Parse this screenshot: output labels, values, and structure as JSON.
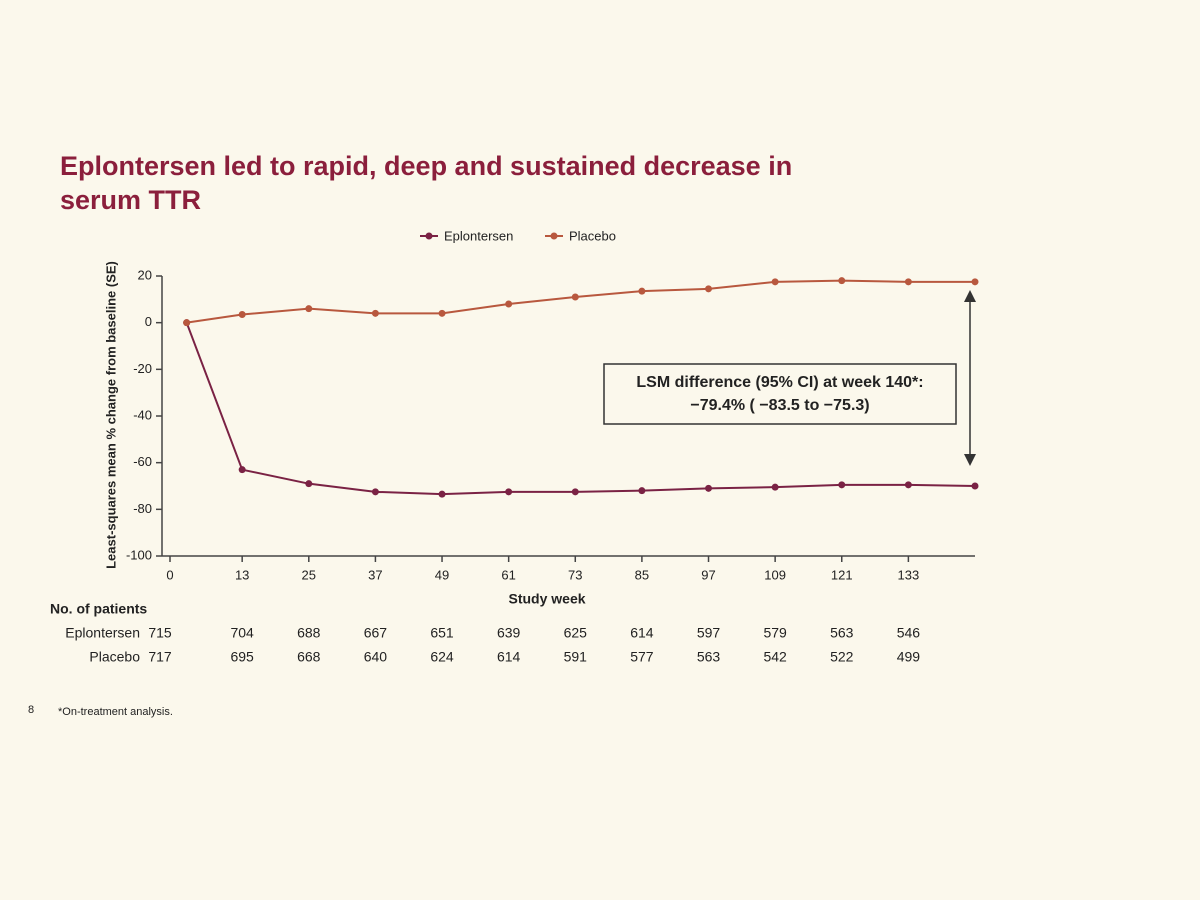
{
  "chart_data": {
    "type": "line",
    "title": "Eplontersen led to rapid, deep and sustained decrease in serum TTR",
    "y_label": "Least-squares mean % change from baseline (SE)",
    "x_label": "Study week",
    "x": [
      3,
      13,
      25,
      37,
      49,
      61,
      73,
      85,
      97,
      109,
      121,
      133,
      145
    ],
    "series": [
      {
        "name": "Eplontersen",
        "color": "#7a2244",
        "values": [
          0,
          -63,
          -69,
          -72.5,
          -73.5,
          -72.5,
          -72.5,
          -72,
          -71,
          -70.5,
          -69.5,
          -69.5,
          -70
        ]
      },
      {
        "name": "Placebo",
        "color": "#b8583e",
        "values": [
          0,
          3.5,
          6,
          4,
          4,
          8,
          11,
          13.5,
          14.5,
          17.5,
          18,
          17.5,
          17.5
        ]
      }
    ],
    "xlim": [
      0,
      145
    ],
    "xticks": [
      0,
      13,
      25,
      37,
      49,
      61,
      73,
      85,
      97,
      109,
      121,
      133
    ],
    "ylim": [
      -100,
      20
    ],
    "yticks": [
      -100,
      -80,
      -60,
      -40,
      -20,
      0,
      20
    ],
    "legend": "top",
    "annotation": [
      "LSM difference (95% CI) at week 140*:",
      "−79.4% ( −83.5 to −75.3)"
    ],
    "patients_table": {
      "title": "No. of patients",
      "rows": [
        {
          "name": "Eplontersen",
          "values": [
            "715",
            "704",
            "688",
            "667",
            "651",
            "639",
            "625",
            "614",
            "597",
            "579",
            "563",
            "546"
          ]
        },
        {
          "name": "Placebo",
          "values": [
            "717",
            "695",
            "668",
            "640",
            "624",
            "614",
            "591",
            "577",
            "563",
            "542",
            "522",
            "499"
          ]
        }
      ]
    },
    "footnote": "*On-treatment analysis.",
    "page_number": "8"
  }
}
